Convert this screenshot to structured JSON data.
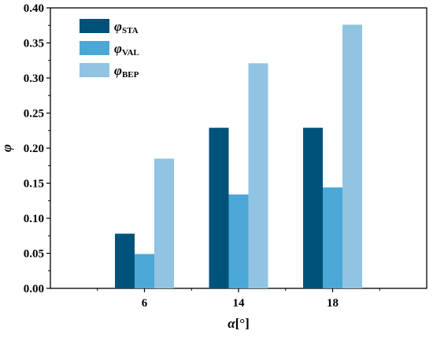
{
  "chart_data": {
    "type": "bar",
    "categories": [
      "6",
      "14",
      "18"
    ],
    "series": [
      {
        "name_main": "φ",
        "name_sub": "STA",
        "color": "#00527a",
        "values": [
          0.078,
          0.229,
          0.229
        ]
      },
      {
        "name_main": "φ",
        "name_sub": "VAL",
        "color": "#4ba8d6",
        "values": [
          0.049,
          0.134,
          0.144
        ]
      },
      {
        "name_main": "φ",
        "name_sub": "BEP",
        "color": "#90c4e2",
        "values": [
          0.185,
          0.321,
          0.376
        ]
      }
    ],
    "xlabel_main": "α",
    "xlabel_unit": "[°]",
    "ylabel": "φ",
    "ylim": [
      0.0,
      0.4
    ],
    "yticks": [
      "0.00",
      "0.05",
      "0.10",
      "0.15",
      "0.20",
      "0.25",
      "0.30",
      "0.35",
      "0.40"
    ],
    "grid": false,
    "legend_position": "top-left"
  }
}
